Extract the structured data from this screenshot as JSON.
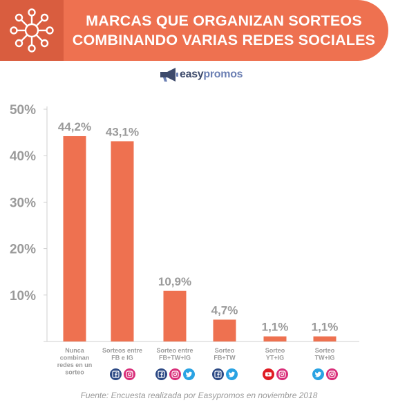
{
  "header": {
    "title_line1": "MARCAS QUE ORGANIZAN SORTEOS",
    "title_line2": "COMBINANDO VARIAS REDES SOCIALES"
  },
  "brand": {
    "part1": "easy",
    "part2": "promos"
  },
  "footer": "Fuente: Encuesta realizada por Easypromos en noviembre 2018",
  "colors": {
    "accent": "#ee7150",
    "header_dark": "#d95d3f",
    "axis_text": "#9a9a9a"
  },
  "chart_data": {
    "type": "bar",
    "categories": [
      [
        "Nunca",
        "combinan",
        "redes en un",
        "sorteo"
      ],
      [
        "Sorteos entre",
        "FB e IG"
      ],
      [
        "Sorteo entre",
        "FB+TW+IG"
      ],
      [
        "Sorteo",
        "FB+TW"
      ],
      [
        "Sorteo",
        "YT+IG"
      ],
      [
        "Sorteo",
        "TW+IG"
      ]
    ],
    "values": [
      44.2,
      43.1,
      10.9,
      4.7,
      1.1,
      1.1
    ],
    "value_labels": [
      "44,2%",
      "43,1%",
      "10,9%",
      "4,7%",
      "1,1%",
      "1,1%"
    ],
    "yticks": [
      0,
      10,
      20,
      30,
      40,
      50
    ],
    "ytick_labels": [
      "",
      "10%",
      "20%",
      "30%",
      "40%",
      "50%"
    ],
    "ylim": [
      0,
      50
    ],
    "grid": false,
    "bar_color": "#ee7150",
    "social_icons": [
      [],
      [
        "facebook-icon",
        "instagram-icon"
      ],
      [
        "facebook-icon",
        "instagram-icon",
        "twitter-icon"
      ],
      [
        "facebook-icon",
        "twitter-icon"
      ],
      [
        "youtube-icon",
        "instagram-icon"
      ],
      [
        "twitter-icon",
        "instagram-icon"
      ]
    ]
  }
}
